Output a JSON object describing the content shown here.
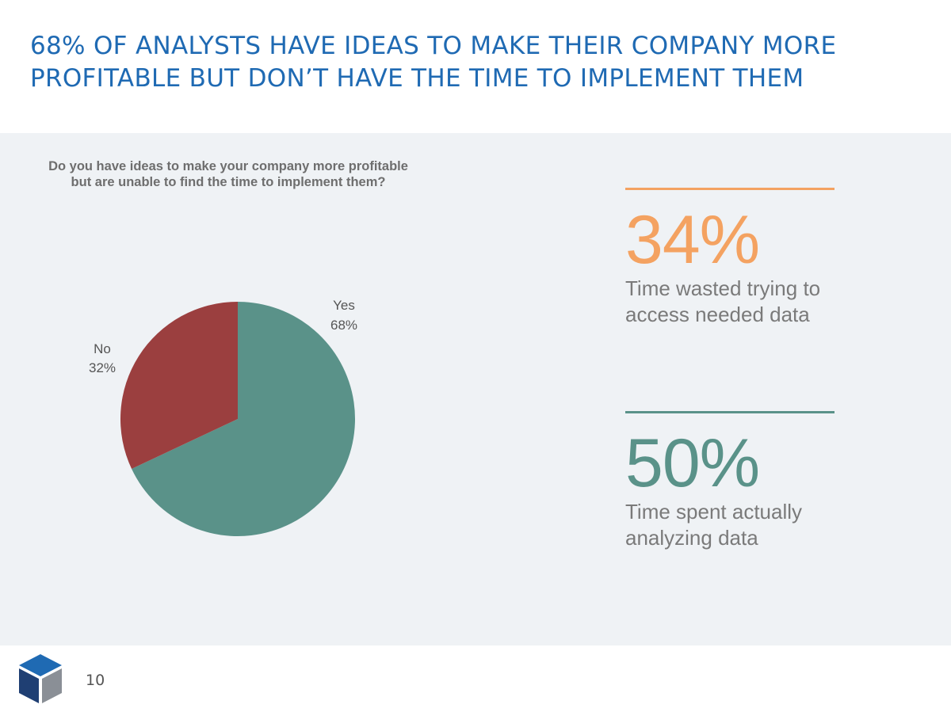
{
  "slide": {
    "title": "68% OF ANALYSTS HAVE IDEAS TO MAKE THEIR COMPANY MORE PROFITABLE BUT DON’T HAVE THE TIME TO IMPLEMENT THEM",
    "page_number": "10"
  },
  "chart_data": {
    "type": "pie",
    "title": "Do you have ideas to make your company more profitable but are unable to find the time to implement them?",
    "slices": [
      {
        "label": "Yes",
        "value": 68,
        "value_label": "68%",
        "color": "#5a9289"
      },
      {
        "label": "No",
        "value": 32,
        "value_label": "32%",
        "color": "#9b3f3f"
      }
    ]
  },
  "stats": [
    {
      "value": "34%",
      "text": "Time wasted trying to access needed data",
      "color": "#f4a261"
    },
    {
      "value": "50%",
      "text": "Time spent actually analyzing data",
      "color": "#5a9289"
    }
  ],
  "colors": {
    "title": "#1f6ab3",
    "panel_background": "#eff2f5",
    "logo_top": "#1f6ab3",
    "logo_left": "#1f3f73",
    "logo_right": "#8a8f96"
  },
  "icons": {
    "logo": "cube-logo-icon"
  }
}
